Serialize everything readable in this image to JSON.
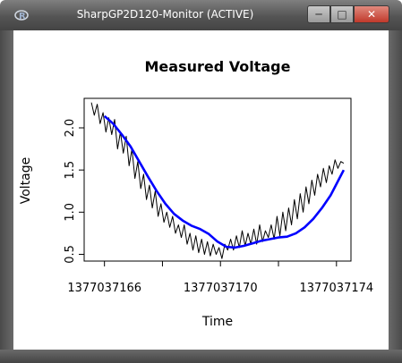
{
  "window": {
    "title": "SharpGP2D120-Monitor (ACTIVE)",
    "app_icon": "r-logo-icon",
    "minimize_icon": "minimize-icon",
    "maximize_icon": "maximize-icon",
    "close_icon": "close-icon"
  },
  "chart_data": {
    "type": "line",
    "title": "Measured Voltage",
    "xlabel": "Time",
    "ylabel": "Voltage",
    "xlim": [
      1377037165.3,
      1377037174.5
    ],
    "ylim": [
      0.42,
      2.35
    ],
    "x_ticks": [
      1377037166,
      1377037168,
      1377037170,
      1377037172,
      1377037174
    ],
    "x_tick_labels": [
      "1377037166",
      "",
      "1377037170",
      "",
      "1377037174"
    ],
    "y_ticks": [
      0.5,
      1.0,
      1.5,
      2.0
    ],
    "y_tick_labels": [
      "0.5",
      "1.0",
      "1.5",
      "2.0"
    ],
    "grid": false,
    "series": [
      {
        "color": "#000000",
        "x": [
          1377037165.55,
          1377037165.65,
          1377037165.75,
          1377037165.85,
          1377037165.95,
          1377037166.05,
          1377037166.15,
          1377037166.25,
          1377037166.35,
          1377037166.45,
          1377037166.55,
          1377037166.65,
          1377037166.75,
          1377037166.85,
          1377037166.95,
          1377037167.05,
          1377037167.15,
          1377037167.25,
          1377037167.35,
          1377037167.45,
          1377037167.55,
          1377037167.65,
          1377037167.75,
          1377037167.85,
          1377037167.95,
          1377037168.05,
          1377037168.15,
          1377037168.25,
          1377037168.35,
          1377037168.45,
          1377037168.55,
          1377037168.65,
          1377037168.75,
          1377037168.85,
          1377037168.95,
          1377037169.05,
          1377037169.15,
          1377037169.25,
          1377037169.35,
          1377037169.45,
          1377037169.55,
          1377037169.65,
          1377037169.75,
          1377037169.85,
          1377037169.95,
          1377037170.05,
          1377037170.15,
          1377037170.25,
          1377037170.35,
          1377037170.45,
          1377037170.55,
          1377037170.65,
          1377037170.75,
          1377037170.85,
          1377037170.95,
          1377037171.05,
          1377037171.15,
          1377037171.25,
          1377037171.35,
          1377037171.45,
          1377037171.55,
          1377037171.65,
          1377037171.75,
          1377037171.85,
          1377037171.95,
          1377037172.05,
          1377037172.15,
          1377037172.25,
          1377037172.35,
          1377037172.45,
          1377037172.55,
          1377037172.65,
          1377037172.75,
          1377037172.85,
          1377037172.95,
          1377037173.05,
          1377037173.15,
          1377037173.25,
          1377037173.35,
          1377037173.45,
          1377037173.55,
          1377037173.65,
          1377037173.75,
          1377037173.85,
          1377037173.95,
          1377037174.05,
          1377037174.15,
          1377037174.25
        ],
        "y": [
          2.3,
          2.15,
          2.28,
          2.05,
          2.18,
          1.95,
          2.12,
          1.92,
          2.1,
          1.75,
          1.95,
          1.7,
          1.9,
          1.55,
          1.75,
          1.4,
          1.6,
          1.28,
          1.45,
          1.15,
          1.32,
          1.05,
          1.25,
          0.95,
          1.1,
          0.88,
          1.0,
          0.82,
          0.95,
          0.75,
          0.85,
          0.7,
          0.85,
          0.62,
          0.75,
          0.55,
          0.72,
          0.52,
          0.68,
          0.5,
          0.65,
          0.48,
          0.62,
          0.5,
          0.58,
          0.45,
          0.62,
          0.55,
          0.68,
          0.55,
          0.72,
          0.58,
          0.78,
          0.6,
          0.75,
          0.62,
          0.8,
          0.62,
          0.85,
          0.65,
          0.78,
          0.7,
          0.85,
          0.68,
          0.95,
          0.72,
          1.0,
          0.78,
          1.05,
          0.85,
          1.15,
          0.92,
          1.22,
          1.0,
          1.3,
          1.1,
          1.38,
          1.2,
          1.45,
          1.3,
          1.52,
          1.35,
          1.55,
          1.45,
          1.62,
          1.52,
          1.6,
          1.58
        ]
      },
      {
        "color": "#0000ff",
        "x": [
          1377037166.0,
          1377037166.3,
          1377037166.6,
          1377037166.9,
          1377037167.2,
          1377037167.5,
          1377037167.8,
          1377037168.1,
          1377037168.4,
          1377037168.7,
          1377037169.0,
          1377037169.3,
          1377037169.6,
          1377037169.9,
          1377037170.2,
          1377037170.5,
          1377037170.8,
          1377037171.1,
          1377037171.4,
          1377037171.7,
          1377037172.0,
          1377037172.3,
          1377037172.6,
          1377037172.9,
          1377037173.2,
          1377037173.5,
          1377037173.8,
          1377037174.1,
          1377037174.25
        ],
        "y": [
          2.14,
          2.05,
          1.92,
          1.78,
          1.6,
          1.42,
          1.25,
          1.1,
          0.98,
          0.9,
          0.84,
          0.8,
          0.74,
          0.65,
          0.59,
          0.58,
          0.6,
          0.63,
          0.66,
          0.68,
          0.7,
          0.71,
          0.75,
          0.82,
          0.92,
          1.05,
          1.2,
          1.4,
          1.5
        ]
      }
    ]
  }
}
